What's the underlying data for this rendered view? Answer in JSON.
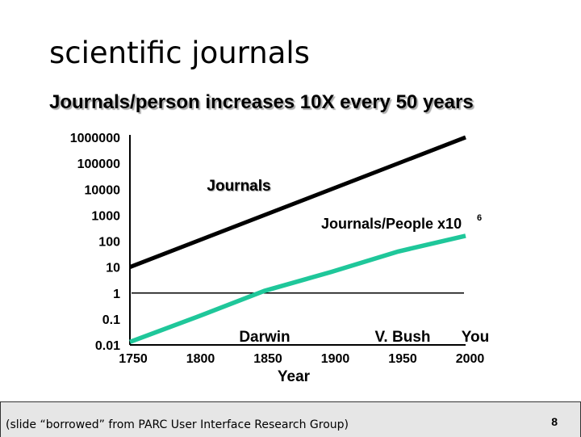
{
  "slide": {
    "title": "scientific journals",
    "subtitle": "Journals/person increases 10X every 50 years",
    "credit": "(slide “borrowed” from PARC User Interface Research Group)",
    "page_number": "8"
  },
  "chart_data": {
    "type": "line",
    "xlabel": "Year",
    "ylabel": "",
    "x_ticks": [
      "1750",
      "1800",
      "1850",
      "1900",
      "1950",
      "2000"
    ],
    "y_ticks": [
      "1000000",
      "100000",
      "10000",
      "1000",
      "100",
      "10",
      "1",
      "0.1",
      "0.01"
    ],
    "y_scale": "log",
    "ylim": [
      0.01,
      1000000
    ],
    "xlim": [
      1750,
      2000
    ],
    "series": [
      {
        "name": "Journals",
        "color": "#000000",
        "x": [
          1750,
          2000
        ],
        "y": [
          10,
          1000000
        ]
      },
      {
        "name": "Journals/People x10",
        "name_sup": "6",
        "color": "#1fc79a",
        "x": [
          1750,
          1800,
          1850,
          1900,
          1950,
          2000
        ],
        "y": [
          0.013,
          0.12,
          1.2,
          6.5,
          40,
          160
        ]
      }
    ],
    "reference_line": {
      "y": 1
    },
    "annotations": [
      {
        "text": "Darwin",
        "x": 1850
      },
      {
        "text": "V. Bush",
        "x": 1950
      },
      {
        "text": "You",
        "x": 2000
      }
    ]
  }
}
